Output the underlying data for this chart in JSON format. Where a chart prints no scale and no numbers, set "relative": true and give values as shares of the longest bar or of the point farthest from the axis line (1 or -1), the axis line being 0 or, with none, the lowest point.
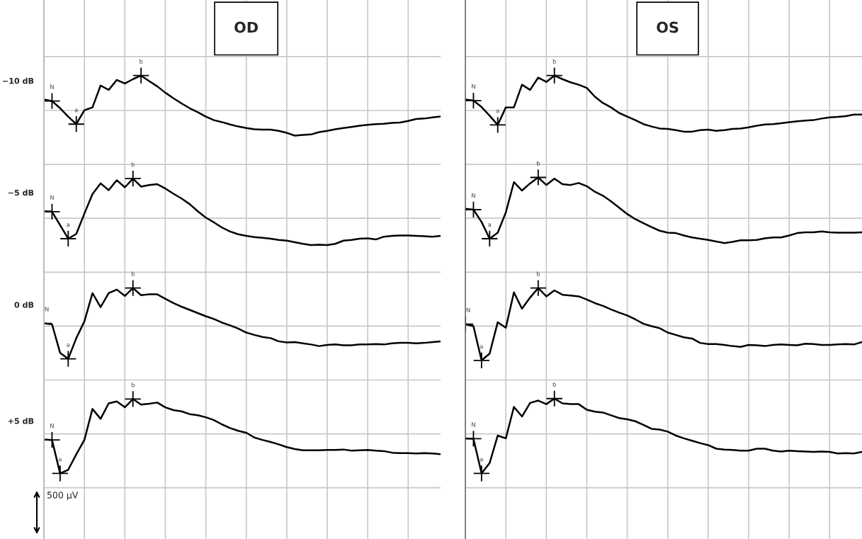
{
  "chart_data": [
    {
      "type": "line",
      "title": "OD",
      "relative": true,
      "grid": true,
      "legend": false,
      "marker": "none",
      "line_style": "solid",
      "categories": [
        null,
        null,
        null,
        null,
        null,
        null,
        null,
        null,
        null,
        null,
        null,
        null,
        null,
        null,
        null,
        null,
        null,
        null,
        null,
        null,
        null,
        null,
        null,
        null,
        null,
        null,
        null,
        null,
        null,
        null,
        null,
        null,
        null,
        null,
        null,
        null,
        null,
        null,
        null,
        null,
        null,
        null,
        null,
        null,
        null,
        null,
        null,
        null,
        null,
        null
      ],
      "series": [
        {
          "name": "−10 dB",
          "color": "#000000",
          "values": [
            0.94,
            0.936,
            0.918,
            0.897,
            0.878,
            0.913,
            0.92,
            0.975,
            0.964,
            0.989,
            0.98,
            0.991,
            1.0,
            0.986,
            0.973,
            0.957,
            0.943,
            0.93,
            0.918,
            0.908,
            0.897,
            0.888,
            0.883,
            0.877,
            0.872,
            0.868,
            0.865,
            0.864,
            0.864,
            0.861,
            0.856,
            0.849,
            0.851,
            0.852,
            0.858,
            0.861,
            0.865,
            0.868,
            0.871,
            0.874,
            0.876,
            0.878,
            0.879,
            0.881,
            0.882,
            0.886,
            0.891,
            0.892,
            0.895,
            0.897
          ]
        },
        {
          "name": "−5 dB",
          "color": "#000000",
          "values": [
            0.659,
            0.658,
            0.624,
            0.59,
            0.602,
            0.653,
            0.702,
            0.729,
            0.712,
            0.737,
            0.719,
            0.741,
            0.721,
            0.725,
            0.727,
            0.716,
            0.703,
            0.691,
            0.677,
            0.659,
            0.643,
            0.631,
            0.618,
            0.608,
            0.601,
            0.597,
            0.594,
            0.592,
            0.59,
            0.587,
            0.585,
            0.581,
            0.577,
            0.574,
            0.575,
            0.574,
            0.577,
            0.585,
            0.587,
            0.59,
            0.591,
            0.588,
            0.595,
            0.597,
            0.598,
            0.598,
            0.597,
            0.596,
            0.595,
            0.597
          ]
        },
        {
          "name": "0 dB",
          "color": "#000000",
          "values": [
            0.377,
            0.375,
            0.303,
            0.288,
            0.34,
            0.382,
            0.453,
            0.418,
            0.453,
            0.462,
            0.446,
            0.466,
            0.448,
            0.45,
            0.45,
            0.439,
            0.428,
            0.419,
            0.411,
            0.403,
            0.395,
            0.388,
            0.379,
            0.372,
            0.364,
            0.354,
            0.348,
            0.343,
            0.34,
            0.332,
            0.329,
            0.33,
            0.327,
            0.324,
            0.32,
            0.323,
            0.324,
            0.322,
            0.322,
            0.324,
            0.324,
            0.325,
            0.324,
            0.327,
            0.328,
            0.328,
            0.327,
            0.328,
            0.33,
            0.332
          ]
        },
        {
          "name": "+5 dB",
          "color": "#000000",
          "values": [
            0.085,
            0.084,
            0.0,
            0.009,
            0.048,
            0.084,
            0.162,
            0.137,
            0.176,
            0.181,
            0.166,
            0.187,
            0.173,
            0.175,
            0.178,
            0.166,
            0.159,
            0.156,
            0.149,
            0.146,
            0.141,
            0.134,
            0.123,
            0.114,
            0.107,
            0.102,
            0.09,
            0.084,
            0.079,
            0.073,
            0.066,
            0.061,
            0.058,
            0.058,
            0.058,
            0.059,
            0.059,
            0.06,
            0.057,
            0.058,
            0.059,
            0.057,
            0.056,
            0.052,
            0.051,
            0.051,
            0.05,
            0.051,
            0.05,
            0.048
          ]
        }
      ],
      "annotations": [
        {
          "text": "N",
          "y": 0.936
        },
        {
          "text": "a",
          "y": 0.878
        },
        {
          "text": "b",
          "y": 1.0
        },
        {
          "text": "N",
          "y": 0.658
        },
        {
          "text": "a",
          "y": 0.59
        },
        {
          "text": "b",
          "y": 0.741
        },
        {
          "text": "N",
          "y": 0.377
        },
        {
          "text": "a",
          "y": 0.288
        },
        {
          "text": "b",
          "y": 0.466
        },
        {
          "text": "N",
          "y": 0.084
        },
        {
          "text": "a",
          "y": 0.0
        },
        {
          "text": "b",
          "y": 0.187
        },
        "500 µV"
      ]
    },
    {
      "type": "line",
      "title": "OS",
      "relative": true,
      "grid": true,
      "legend": false,
      "marker": "none",
      "line_style": "solid",
      "categories": [
        null,
        null,
        null,
        null,
        null,
        null,
        null,
        null,
        null,
        null,
        null,
        null,
        null,
        null,
        null,
        null,
        null,
        null,
        null,
        null,
        null,
        null,
        null,
        null,
        null,
        null,
        null,
        null,
        null,
        null,
        null,
        null,
        null,
        null,
        null,
        null,
        null,
        null,
        null,
        null,
        null,
        null,
        null,
        null,
        null,
        null,
        null,
        null,
        null,
        null
      ],
      "series": [
        {
          "color": "#000000",
          "values": [
            0.94,
            0.937,
            0.921,
            0.899,
            0.876,
            0.92,
            0.92,
            0.977,
            0.964,
            0.995,
            0.984,
            1.0,
            0.991,
            0.983,
            0.977,
            0.969,
            0.947,
            0.931,
            0.92,
            0.906,
            0.897,
            0.888,
            0.878,
            0.872,
            0.867,
            0.866,
            0.863,
            0.859,
            0.859,
            0.863,
            0.864,
            0.861,
            0.863,
            0.866,
            0.867,
            0.87,
            0.874,
            0.877,
            0.878,
            0.88,
            0.883,
            0.885,
            0.887,
            0.888,
            0.892,
            0.895,
            0.896,
            0.898,
            0.902,
            0.902
          ]
        },
        {
          "color": "#000000",
          "values": [
            0.665,
            0.663,
            0.632,
            0.59,
            0.605,
            0.656,
            0.732,
            0.711,
            0.729,
            0.744,
            0.725,
            0.741,
            0.727,
            0.725,
            0.73,
            0.722,
            0.708,
            0.698,
            0.684,
            0.668,
            0.652,
            0.639,
            0.629,
            0.619,
            0.61,
            0.605,
            0.604,
            0.598,
            0.593,
            0.59,
            0.587,
            0.583,
            0.579,
            0.582,
            0.586,
            0.586,
            0.587,
            0.591,
            0.593,
            0.593,
            0.598,
            0.604,
            0.606,
            0.606,
            0.608,
            0.606,
            0.605,
            0.605,
            0.605,
            0.606
          ]
        },
        {
          "color": "#000000",
          "values": [
            0.375,
            0.37,
            0.284,
            0.301,
            0.38,
            0.366,
            0.455,
            0.414,
            0.442,
            0.466,
            0.445,
            0.46,
            0.449,
            0.447,
            0.445,
            0.437,
            0.428,
            0.421,
            0.412,
            0.404,
            0.397,
            0.387,
            0.376,
            0.37,
            0.365,
            0.354,
            0.348,
            0.342,
            0.339,
            0.328,
            0.325,
            0.325,
            0.323,
            0.32,
            0.318,
            0.323,
            0.322,
            0.32,
            0.323,
            0.324,
            0.323,
            0.322,
            0.326,
            0.325,
            0.323,
            0.323,
            0.324,
            0.325,
            0.324,
            0.33
          ]
        },
        {
          "color": "#000000",
          "values": [
            0.088,
            0.087,
            0.0,
            0.026,
            0.095,
            0.088,
            0.167,
            0.143,
            0.177,
            0.183,
            0.174,
            0.188,
            0.176,
            0.174,
            0.174,
            0.16,
            0.155,
            0.153,
            0.146,
            0.139,
            0.136,
            0.131,
            0.122,
            0.112,
            0.11,
            0.105,
            0.095,
            0.088,
            0.082,
            0.076,
            0.071,
            0.062,
            0.06,
            0.059,
            0.057,
            0.057,
            0.062,
            0.062,
            0.057,
            0.055,
            0.057,
            0.056,
            0.055,
            0.054,
            0.055,
            0.054,
            0.05,
            0.051,
            0.05,
            0.054
          ]
        }
      ],
      "annotations": [
        {
          "text": "N",
          "y": 0.937
        },
        {
          "text": "a",
          "y": 0.876
        },
        {
          "text": "b",
          "y": 1.0
        },
        {
          "text": "N",
          "y": 0.663
        },
        {
          "text": "a",
          "y": 0.59
        },
        {
          "text": "b",
          "y": 0.744
        },
        {
          "text": "N",
          "y": 0.375
        },
        {
          "text": "a",
          "y": 0.284
        },
        {
          "text": "b",
          "y": 0.466
        },
        {
          "text": "N",
          "y": 0.087
        },
        {
          "text": "a",
          "y": 0.0
        },
        {
          "text": "b",
          "y": 0.188
        }
      ]
    }
  ]
}
